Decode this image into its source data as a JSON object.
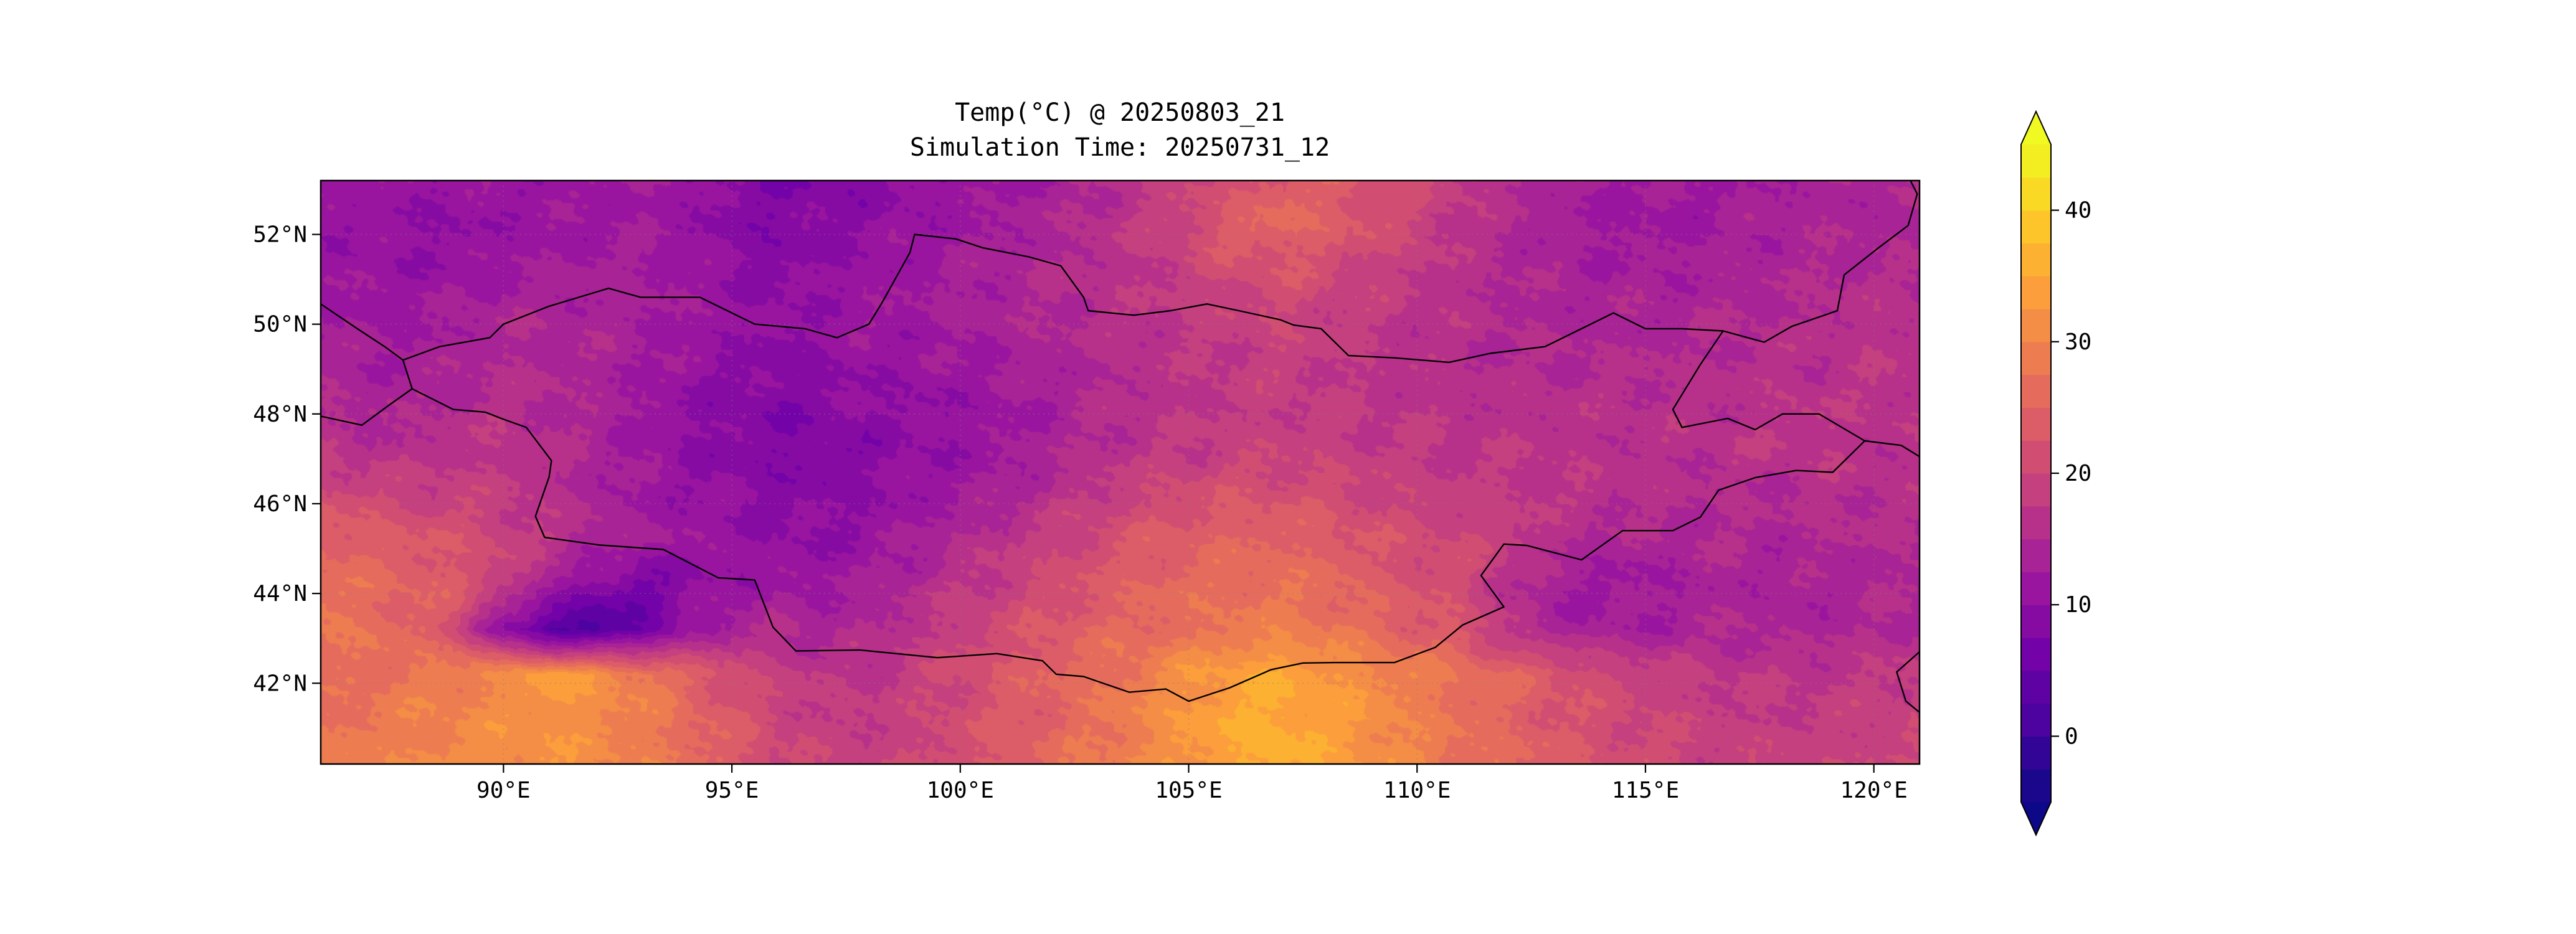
{
  "figure": {
    "title_line1": "Temp(°C) @ 20250803_21",
    "title_line2": "Simulation Time: 20250731_12"
  },
  "axes": {
    "lon_range": [
      86,
      121
    ],
    "lat_range": [
      40.2,
      53.2
    ],
    "x_ticks": [
      {
        "value": 90,
        "label": "90°E"
      },
      {
        "value": 95,
        "label": "95°E"
      },
      {
        "value": 100,
        "label": "100°E"
      },
      {
        "value": 105,
        "label": "105°E"
      },
      {
        "value": 110,
        "label": "110°E"
      },
      {
        "value": 115,
        "label": "115°E"
      },
      {
        "value": 120,
        "label": "120°E"
      }
    ],
    "y_ticks": [
      {
        "value": 42,
        "label": "42°N"
      },
      {
        "value": 44,
        "label": "44°N"
      },
      {
        "value": 46,
        "label": "46°N"
      },
      {
        "value": 48,
        "label": "48°N"
      },
      {
        "value": 50,
        "label": "50°N"
      },
      {
        "value": 52,
        "label": "52°N"
      }
    ],
    "grid": true
  },
  "colorbar": {
    "vmin": -5,
    "vmax": 45,
    "level_step": 2.5,
    "extend": "both",
    "ticks": [
      0,
      10,
      20,
      30,
      40
    ],
    "tick_labels": [
      "0",
      "10",
      "20",
      "30",
      "40"
    ],
    "colormap": "plasma",
    "colors": [
      "#0d0887",
      "#46039f",
      "#7201a8",
      "#9c179e",
      "#bd3786",
      "#d8576b",
      "#ed7953",
      "#fb9f3a",
      "#fdca26",
      "#f0f921"
    ]
  },
  "chart_data": {
    "type": "heatmap",
    "title": "Temp(°C) @ 20250803_21",
    "subtitle": "Simulation Time: 20250731_12",
    "xlabel": "",
    "ylabel": "",
    "units": "°C",
    "lon": [
      86,
      87,
      88,
      89,
      90,
      91,
      92,
      93,
      94,
      95,
      96,
      97,
      98,
      99,
      100,
      101,
      102,
      103,
      104,
      105,
      106,
      107,
      108,
      109,
      110,
      111,
      112,
      113,
      114,
      115,
      116,
      117,
      118,
      119,
      120,
      121
    ],
    "lat": [
      53.2,
      52.2,
      51.2,
      50.2,
      49.2,
      48.2,
      47.2,
      46.2,
      45.2,
      44.2,
      43.2,
      42.2,
      41.2,
      40.2
    ],
    "temperature_c": [
      [
        12,
        12,
        11,
        11,
        11,
        12,
        12,
        13,
        11,
        9,
        8,
        8,
        9,
        10,
        11,
        12,
        13,
        15,
        17,
        19,
        21,
        24,
        24,
        22,
        20,
        18,
        16,
        14,
        13,
        12,
        12,
        13,
        13,
        14,
        14,
        14
      ],
      [
        11,
        11,
        10,
        10,
        11,
        11,
        12,
        12,
        11,
        9,
        8,
        9,
        10,
        11,
        12,
        13,
        14,
        16,
        18,
        21,
        24,
        26,
        24,
        22,
        20,
        17,
        15,
        13,
        12,
        12,
        12,
        13,
        14,
        14,
        14,
        14
      ],
      [
        12,
        11,
        11,
        11,
        12,
        13,
        13,
        13,
        12,
        10,
        9,
        10,
        11,
        12,
        13,
        14,
        15,
        16,
        17,
        19,
        21,
        22,
        21,
        19,
        18,
        16,
        15,
        14,
        13,
        13,
        13,
        14,
        14,
        15,
        15,
        15
      ],
      [
        13,
        12,
        12,
        13,
        14,
        14,
        14,
        13,
        12,
        11,
        10,
        11,
        12,
        12,
        13,
        14,
        15,
        16,
        17,
        18,
        19,
        20,
        19,
        18,
        17,
        16,
        15,
        14,
        14,
        14,
        14,
        15,
        15,
        16,
        16,
        16
      ],
      [
        14,
        13,
        13,
        14,
        15,
        15,
        14,
        13,
        11,
        10,
        9,
        10,
        11,
        11,
        12,
        13,
        14,
        15,
        16,
        17,
        18,
        19,
        18,
        17,
        16,
        16,
        15,
        15,
        15,
        15,
        15,
        16,
        16,
        16,
        17,
        17
      ],
      [
        15,
        14,
        14,
        15,
        16,
        15,
        14,
        12,
        10,
        9,
        8,
        9,
        10,
        10,
        11,
        12,
        13,
        15,
        16,
        17,
        18,
        18,
        18,
        17,
        17,
        16,
        16,
        16,
        16,
        16,
        16,
        16,
        17,
        17,
        17,
        17
      ],
      [
        17,
        16,
        16,
        17,
        17,
        16,
        14,
        12,
        10,
        9,
        8,
        8,
        9,
        10,
        11,
        12,
        14,
        16,
        17,
        18,
        19,
        19,
        19,
        18,
        18,
        17,
        17,
        17,
        16,
        16,
        16,
        17,
        17,
        17,
        16,
        16
      ],
      [
        21,
        20,
        19,
        19,
        18,
        16,
        14,
        12,
        11,
        10,
        9,
        9,
        10,
        11,
        12,
        14,
        16,
        18,
        20,
        21,
        22,
        22,
        21,
        20,
        19,
        18,
        18,
        17,
        17,
        16,
        15,
        15,
        15,
        16,
        16,
        16
      ],
      [
        25,
        24,
        23,
        22,
        20,
        17,
        15,
        13,
        12,
        11,
        10,
        10,
        11,
        13,
        15,
        17,
        19,
        21,
        23,
        24,
        25,
        25,
        24,
        22,
        21,
        20,
        19,
        16,
        14,
        14,
        15,
        15,
        14,
        15,
        15,
        15
      ],
      [
        27,
        26,
        25,
        23,
        19,
        13,
        9,
        7,
        9,
        11,
        12,
        12,
        13,
        15,
        17,
        19,
        21,
        23,
        25,
        26,
        27,
        27,
        26,
        24,
        22,
        21,
        16,
        13,
        12,
        12,
        13,
        14,
        13,
        14,
        14,
        15
      ],
      [
        28,
        27,
        25,
        21,
        9,
        3,
        1,
        5,
        11,
        14,
        15,
        14,
        15,
        17,
        19,
        21,
        23,
        25,
        26,
        27,
        28,
        29,
        28,
        26,
        24,
        22,
        17,
        14,
        13,
        13,
        14,
        15,
        14,
        14,
        15,
        15
      ],
      [
        25,
        27,
        28,
        29,
        31,
        34,
        32,
        29,
        25,
        21,
        19,
        17,
        17,
        19,
        21,
        23,
        25,
        27,
        29,
        32,
        34,
        35,
        33,
        31,
        29,
        27,
        25,
        23,
        21,
        19,
        18,
        17,
        17,
        17,
        18,
        18
      ],
      [
        27,
        28,
        29,
        30,
        31,
        32,
        31,
        29,
        26,
        23,
        20,
        18,
        18,
        19,
        21,
        23,
        25,
        27,
        30,
        33,
        35,
        36,
        34,
        32,
        29,
        27,
        25,
        23,
        21,
        20,
        19,
        18,
        18,
        18,
        19,
        19
      ],
      [
        29,
        29,
        30,
        31,
        32,
        32,
        31,
        29,
        27,
        24,
        21,
        19,
        19,
        20,
        22,
        24,
        26,
        28,
        30,
        33,
        35,
        36,
        34,
        32,
        30,
        28,
        26,
        24,
        22,
        21,
        20,
        19,
        19,
        19,
        20,
        20
      ]
    ]
  },
  "map": {
    "borders": {
      "mongolia": [
        [
          87.8,
          49.2
        ],
        [
          88.6,
          49.5
        ],
        [
          89.7,
          49.7
        ],
        [
          90.0,
          50.0
        ],
        [
          91.0,
          50.4
        ],
        [
          92.3,
          50.8
        ],
        [
          93.0,
          50.6
        ],
        [
          94.3,
          50.6
        ],
        [
          95.5,
          50.0
        ],
        [
          96.6,
          49.9
        ],
        [
          97.3,
          49.7
        ],
        [
          98.0,
          50.0
        ],
        [
          98.3,
          50.5
        ],
        [
          98.9,
          51.6
        ],
        [
          99.0,
          52.0
        ],
        [
          99.9,
          51.9
        ],
        [
          100.5,
          51.7
        ],
        [
          101.5,
          51.5
        ],
        [
          102.2,
          51.3
        ],
        [
          102.7,
          50.6
        ],
        [
          102.8,
          50.3
        ],
        [
          103.8,
          50.2
        ],
        [
          104.6,
          50.3
        ],
        [
          105.4,
          50.45
        ],
        [
          106.1,
          50.3
        ],
        [
          107.0,
          50.1
        ],
        [
          107.3,
          49.98
        ],
        [
          107.9,
          49.9
        ],
        [
          108.5,
          49.3
        ],
        [
          109.5,
          49.25
        ],
        [
          110.7,
          49.15
        ],
        [
          111.6,
          49.35
        ],
        [
          112.8,
          49.5
        ],
        [
          114.3,
          50.25
        ],
        [
          115.0,
          49.9
        ],
        [
          115.8,
          49.9
        ],
        [
          116.7,
          49.85
        ],
        [
          116.2,
          49.1
        ],
        [
          115.6,
          48.1
        ],
        [
          115.8,
          47.7
        ],
        [
          116.8,
          47.9
        ],
        [
          117.4,
          47.65
        ],
        [
          118.0,
          48.0
        ],
        [
          118.8,
          48.0
        ],
        [
          119.8,
          47.4
        ],
        [
          119.1,
          46.7
        ],
        [
          118.3,
          46.74
        ],
        [
          117.4,
          46.58
        ],
        [
          116.6,
          46.3
        ],
        [
          116.2,
          45.7
        ],
        [
          115.6,
          45.4
        ],
        [
          114.5,
          45.4
        ],
        [
          113.6,
          44.75
        ],
        [
          112.4,
          45.07
        ],
        [
          111.9,
          45.1
        ],
        [
          111.4,
          44.4
        ],
        [
          111.9,
          43.7
        ],
        [
          111.0,
          43.3
        ],
        [
          110.4,
          42.8
        ],
        [
          109.5,
          42.46
        ],
        [
          108.2,
          42.46
        ],
        [
          107.5,
          42.45
        ],
        [
          106.8,
          42.3
        ],
        [
          105.9,
          41.9
        ],
        [
          105.0,
          41.6
        ],
        [
          104.5,
          41.87
        ],
        [
          103.7,
          41.8
        ],
        [
          102.7,
          42.15
        ],
        [
          102.1,
          42.2
        ],
        [
          101.8,
          42.5
        ],
        [
          100.8,
          42.66
        ],
        [
          99.5,
          42.57
        ],
        [
          97.8,
          42.74
        ],
        [
          96.4,
          42.72
        ],
        [
          95.9,
          43.25
        ],
        [
          95.5,
          44.3
        ],
        [
          94.7,
          44.35
        ],
        [
          93.5,
          44.98
        ],
        [
          92.1,
          45.08
        ],
        [
          90.9,
          45.25
        ],
        [
          90.7,
          45.72
        ],
        [
          91.0,
          46.6
        ],
        [
          91.05,
          46.96
        ],
        [
          90.5,
          47.7
        ],
        [
          90.0,
          47.88
        ],
        [
          89.6,
          48.04
        ],
        [
          88.9,
          48.1
        ],
        [
          88.0,
          48.56
        ],
        [
          87.8,
          49.2
        ]
      ],
      "other": [
        [
          [
            86,
            50.45
          ],
          [
            86.8,
            49.9
          ],
          [
            87.4,
            49.5
          ],
          [
            87.8,
            49.2
          ]
        ],
        [
          [
            86,
            47.95
          ],
          [
            86.9,
            47.75
          ],
          [
            87.5,
            48.2
          ],
          [
            88.0,
            48.56
          ]
        ],
        [
          [
            116.7,
            49.85
          ],
          [
            117.6,
            49.6
          ],
          [
            118.2,
            49.95
          ],
          [
            119.2,
            50.3
          ],
          [
            119.35,
            51.1
          ],
          [
            120.1,
            51.7
          ],
          [
            120.75,
            52.2
          ],
          [
            120.95,
            52.9
          ],
          [
            120.8,
            53.2
          ]
        ],
        [
          [
            119.8,
            47.4
          ],
          [
            120.6,
            47.3
          ],
          [
            121,
            47.05
          ]
        ],
        [
          [
            121,
            42.7
          ],
          [
            120.5,
            42.25
          ],
          [
            120.7,
            41.6
          ],
          [
            121,
            41.35
          ]
        ]
      ]
    }
  }
}
